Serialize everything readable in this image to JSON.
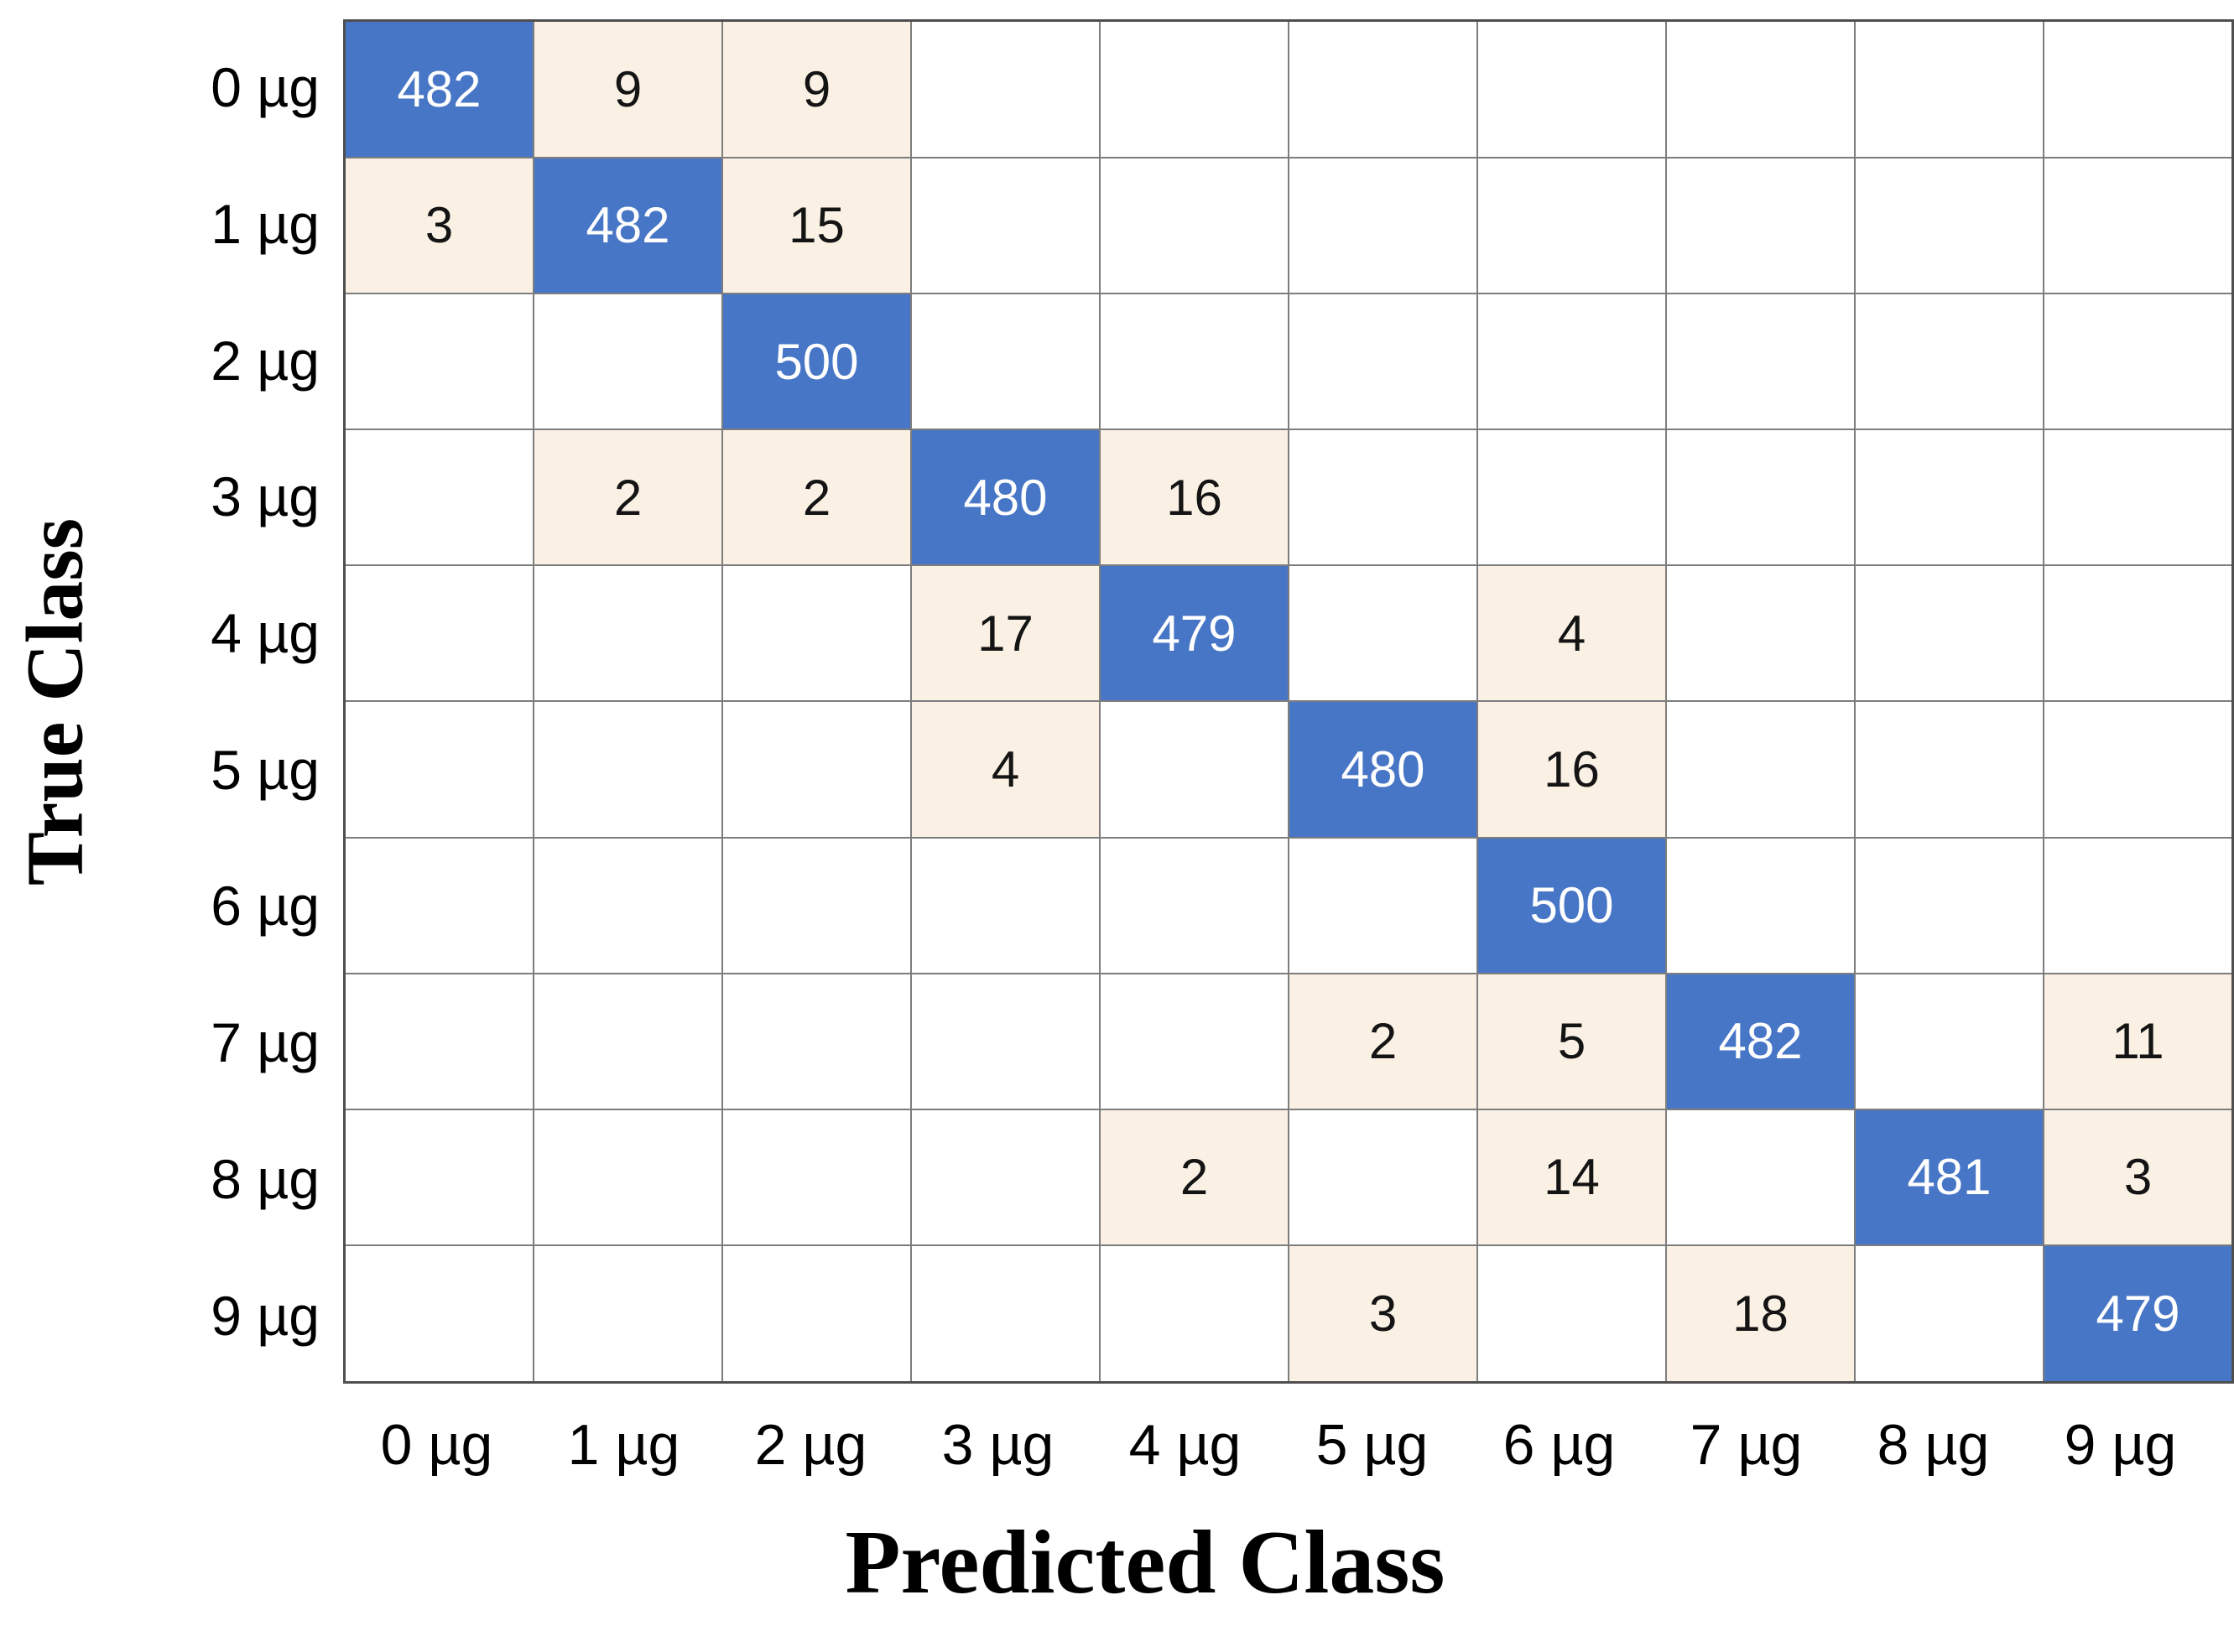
{
  "chart_data": {
    "type": "heatmap",
    "subtype": "confusion-matrix",
    "title": "",
    "xlabel": "Predicted Class",
    "ylabel": "True Class",
    "x_categories": [
      "0 µg",
      "1 µg",
      "2 µg",
      "3 µg",
      "4 µg",
      "5 µg",
      "6 µg",
      "7 µg",
      "8 µg",
      "9 µg"
    ],
    "y_categories": [
      "0 µg",
      "1 µg",
      "2 µg",
      "3 µg",
      "4 µg",
      "5 µg",
      "6 µg",
      "7 µg",
      "8 µg",
      "9 µg"
    ],
    "matrix": [
      [
        482,
        9,
        9,
        null,
        null,
        null,
        null,
        null,
        null,
        null
      ],
      [
        3,
        482,
        15,
        null,
        null,
        null,
        null,
        null,
        null,
        null
      ],
      [
        null,
        null,
        500,
        null,
        null,
        null,
        null,
        null,
        null,
        null
      ],
      [
        null,
        2,
        2,
        480,
        16,
        null,
        null,
        null,
        null,
        null
      ],
      [
        null,
        null,
        null,
        17,
        479,
        null,
        4,
        null,
        null,
        null
      ],
      [
        null,
        null,
        null,
        4,
        null,
        480,
        16,
        null,
        null,
        null
      ],
      [
        null,
        null,
        null,
        null,
        null,
        null,
        500,
        null,
        null,
        null
      ],
      [
        null,
        null,
        null,
        null,
        null,
        2,
        5,
        482,
        null,
        11
      ],
      [
        null,
        null,
        null,
        null,
        2,
        null,
        14,
        null,
        481,
        3
      ],
      [
        null,
        null,
        null,
        null,
        null,
        3,
        null,
        18,
        null,
        479
      ]
    ],
    "layout": {
      "grid_on": true,
      "legend": "none",
      "axis_label_position": {
        "ylabel": "left-rotated",
        "xlabel": "bottom-center"
      }
    },
    "colors": {
      "diagonal_fill": "#4876C6",
      "diagonal_text": "#FFFFFF",
      "offdiagonal_fill": "#FAF1E4",
      "offdiagonal_text": "#141414",
      "empty_fill": "#FFFFFF",
      "grid_line": "#7D7D7D",
      "colored_cell_outline": "#4D4D4D"
    }
  }
}
